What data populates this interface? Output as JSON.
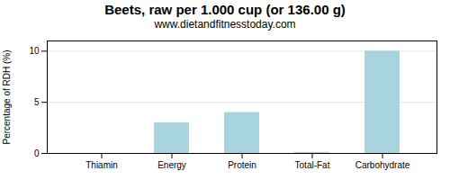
{
  "chart_data": {
    "type": "bar",
    "title": "Beets, raw per 1.000 cup (or 136.00 g)",
    "subtitle": "www.dietandfitnesstoday.com",
    "categories": [
      "Thiamin",
      "Energy",
      "Protein",
      "Total-Fat",
      "Carbohydrate"
    ],
    "values": [
      0.0,
      3.0,
      4.0,
      0.1,
      10.0
    ],
    "color": "#a8d4e0",
    "ylabel": "Percentage of RDH (%)",
    "ylim": [
      0,
      11
    ],
    "yticks": [
      0,
      5,
      10
    ],
    "grid": true
  }
}
